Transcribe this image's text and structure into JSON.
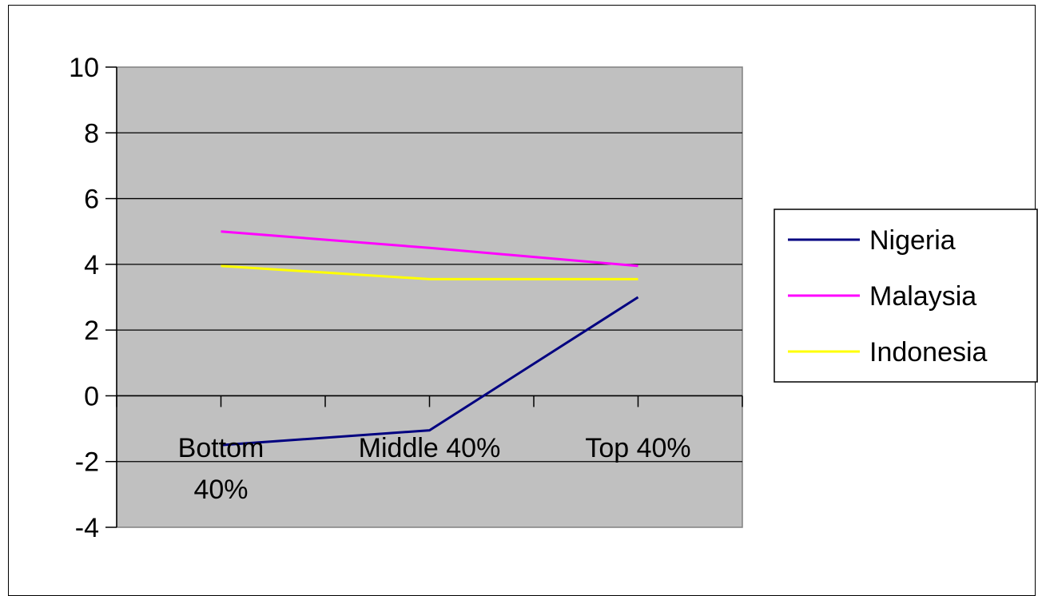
{
  "chart_data": {
    "type": "line",
    "categories": [
      [
        "Bottom",
        "40%"
      ],
      [
        "Middle 40%"
      ],
      [
        "Top 40%"
      ]
    ],
    "ylim": [
      -4,
      10
    ],
    "y_ticks": [
      10,
      8,
      6,
      4,
      2,
      0,
      -2,
      -4
    ],
    "grid": true,
    "plot_background": "#c0c0c0",
    "legend_position": "right",
    "series": [
      {
        "name": "Nigeria",
        "color": "#000080",
        "values": [
          -1.5,
          -1.05,
          3.0
        ]
      },
      {
        "name": "Malaysia",
        "color": "#ff00ff",
        "values": [
          5.0,
          4.5,
          3.95
        ]
      },
      {
        "name": "Indonesia",
        "color": "#ffff00",
        "values": [
          3.95,
          3.55,
          3.55
        ]
      }
    ]
  }
}
